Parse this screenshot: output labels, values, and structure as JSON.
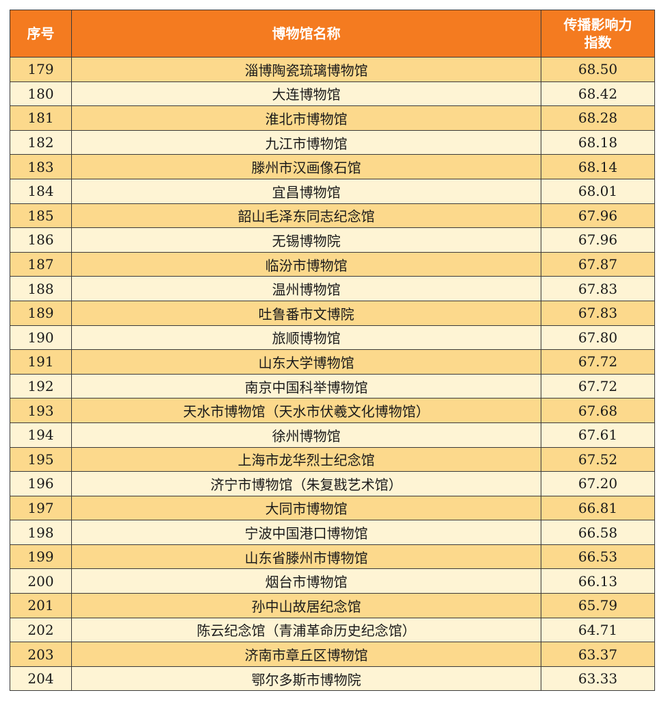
{
  "table": {
    "headers": {
      "rank": "序号",
      "name": "博物馆名称",
      "index_line1": "传播影响力",
      "index_line2": "指数"
    },
    "rows": [
      {
        "rank": "179",
        "name": "淄博陶瓷琉璃博物馆",
        "score": "68.50"
      },
      {
        "rank": "180",
        "name": "大连博物馆",
        "score": "68.42"
      },
      {
        "rank": "181",
        "name": "淮北市博物馆",
        "score": "68.28"
      },
      {
        "rank": "182",
        "name": "九江市博物馆",
        "score": "68.18"
      },
      {
        "rank": "183",
        "name": "滕州市汉画像石馆",
        "score": "68.14"
      },
      {
        "rank": "184",
        "name": "宜昌博物馆",
        "score": "68.01"
      },
      {
        "rank": "185",
        "name": "韶山毛泽东同志纪念馆",
        "score": "67.96"
      },
      {
        "rank": "186",
        "name": "无锡博物院",
        "score": "67.96"
      },
      {
        "rank": "187",
        "name": "临汾市博物馆",
        "score": "67.87"
      },
      {
        "rank": "188",
        "name": "温州博物馆",
        "score": "67.83"
      },
      {
        "rank": "189",
        "name": "吐鲁番市文博院",
        "score": "67.83"
      },
      {
        "rank": "190",
        "name": "旅顺博物馆",
        "score": "67.80"
      },
      {
        "rank": "191",
        "name": "山东大学博物馆",
        "score": "67.72"
      },
      {
        "rank": "192",
        "name": "南京中国科举博物馆",
        "score": "67.72"
      },
      {
        "rank": "193",
        "name": "天水市博物馆（天水市伏羲文化博物馆）",
        "score": "67.68"
      },
      {
        "rank": "194",
        "name": "徐州博物馆",
        "score": "67.61"
      },
      {
        "rank": "195",
        "name": "上海市龙华烈士纪念馆",
        "score": "67.52"
      },
      {
        "rank": "196",
        "name": "济宁市博物馆（朱复戡艺术馆）",
        "score": "67.20"
      },
      {
        "rank": "197",
        "name": "大同市博物馆",
        "score": "66.81"
      },
      {
        "rank": "198",
        "name": "宁波中国港口博物馆",
        "score": "66.58"
      },
      {
        "rank": "199",
        "name": "山东省滕州市博物馆",
        "score": "66.53"
      },
      {
        "rank": "200",
        "name": "烟台市博物馆",
        "score": "66.13"
      },
      {
        "rank": "201",
        "name": "孙中山故居纪念馆",
        "score": "65.79"
      },
      {
        "rank": "202",
        "name": "陈云纪念馆（青浦革命历史纪念馆）",
        "score": "64.71"
      },
      {
        "rank": "203",
        "name": "济南市章丘区博物馆",
        "score": "63.37"
      },
      {
        "rank": "204",
        "name": "鄂尔多斯市博物院",
        "score": "63.33"
      }
    ]
  },
  "colors": {
    "header_bg": "#F47B20",
    "row_odd_bg": "#FCD98C",
    "row_even_bg": "#FEF4D4"
  }
}
